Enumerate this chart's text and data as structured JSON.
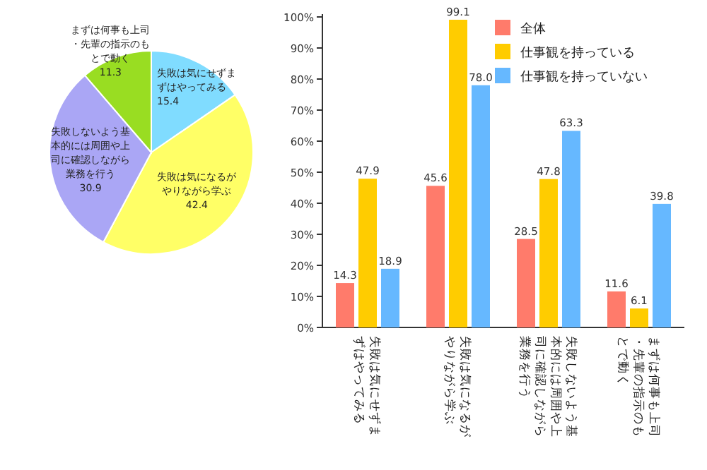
{
  "chart_data": [
    {
      "type": "pie",
      "categories": [
        "失敗は気にせずまずはやってみる",
        "失敗は気になるがやりながら学ぶ",
        "失敗しないよう基本的には周囲や上司に確認しながら業務を行う",
        "まずは何事も上司・先輩の指示のもとで動く"
      ],
      "values": [
        15.4,
        42.4,
        30.9,
        11.3
      ],
      "colors": [
        "#80dcff",
        "#ffff66",
        "#aaa6f5",
        "#99dd22"
      ],
      "data_labels": true
    },
    {
      "type": "bar",
      "categories": [
        "失敗は気にせずまずはやってみる",
        "失敗は気になるがやりながら学ぶ",
        "失敗しないよう基本的には周囲や上司に確認しながら業務を行う",
        "まずは何事も上司・先輩の指示のもとで動く"
      ],
      "series": [
        {
          "name": "全体",
          "color": "#ff7b6b",
          "values": [
            14.3,
            45.6,
            28.5,
            11.6
          ],
          "value_labels": [
            "14.3",
            "45.6",
            "28.5",
            "11.6"
          ]
        },
        {
          "name": "仕事観を持っている",
          "color": "#ffcc00",
          "values": [
            47.9,
            99.1,
            47.8,
            6.1
          ],
          "value_labels": [
            "47.9",
            "99.1",
            "47.8",
            "6.1"
          ]
        },
        {
          "name": "仕事観を持っていない",
          "color": "#66b8ff",
          "values": [
            18.9,
            78.0,
            63.3,
            39.8
          ],
          "value_labels": [
            "18.9",
            "78.0",
            "63.3",
            "39.8"
          ]
        }
      ],
      "ylim": [
        0,
        100
      ],
      "yticks": [
        {
          "value": 0,
          "label": "0%"
        },
        {
          "value": 10,
          "label": "10%"
        },
        {
          "value": 20,
          "label": "20%"
        },
        {
          "value": 30,
          "label": "30%"
        },
        {
          "value": 40,
          "label": "40%"
        },
        {
          "value": 50,
          "label": "50%"
        },
        {
          "value": 60,
          "label": "60%"
        },
        {
          "value": 70,
          "label": "70%"
        },
        {
          "value": 80,
          "label": "80%"
        },
        {
          "value": 90,
          "label": "90%"
        },
        {
          "value": 100,
          "label": "100%"
        }
      ],
      "legend": "top right",
      "grid": false
    }
  ]
}
